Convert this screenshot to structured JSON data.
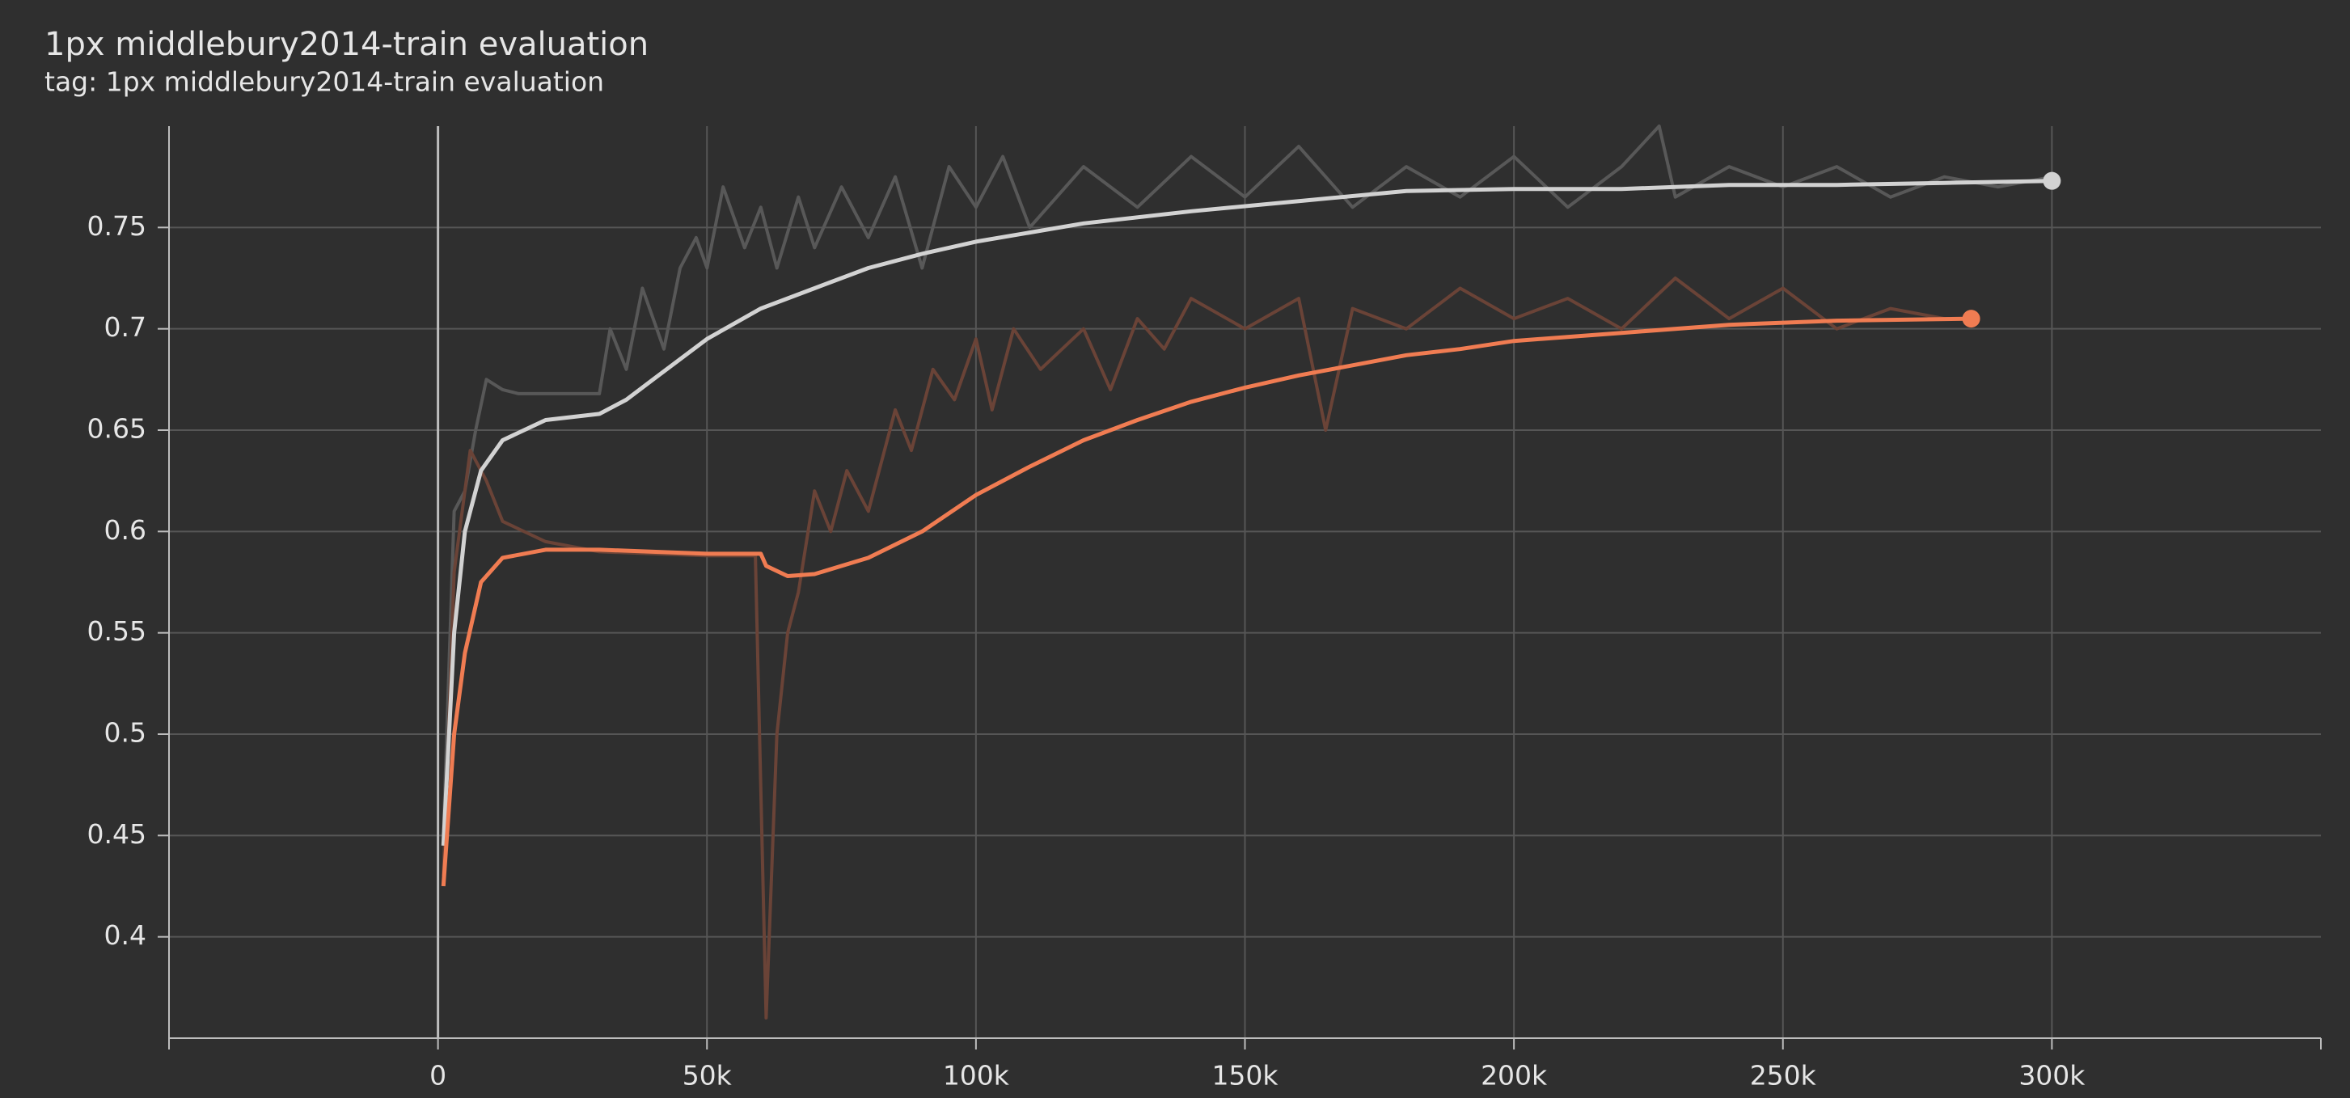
{
  "chart_data": {
    "type": "line",
    "title": "1px middlebury2014-train evaluation",
    "subtitle": "tag: 1px middlebury2014-train evaluation",
    "xlim": [
      -50000,
      350000
    ],
    "ylim": [
      0.35,
      0.8
    ],
    "xticks": [
      0,
      {
        "value": 50000,
        "label": "50k"
      },
      {
        "value": 100000,
        "label": "100k"
      },
      {
        "value": 150000,
        "label": "150k"
      },
      {
        "value": 200000,
        "label": "200k"
      },
      {
        "value": 250000,
        "label": "250k"
      },
      {
        "value": 300000,
        "label": "300k"
      }
    ],
    "yticks": [
      0.4,
      0.45,
      0.5,
      0.55,
      0.6,
      0.65,
      0.7,
      0.75
    ],
    "grid": true,
    "series": [
      {
        "color": "#585858",
        "x": [
          1000,
          3000,
          5000,
          7000,
          9000,
          12000,
          15000,
          20000,
          25000,
          30000,
          32000,
          35000,
          38000,
          42000,
          45000,
          48000,
          50000,
          53000,
          57000,
          60000,
          63000,
          67000,
          70000,
          75000,
          80000,
          85000,
          90000,
          95000,
          100000,
          105000,
          110000,
          120000,
          130000,
          140000,
          150000,
          160000,
          170000,
          180000,
          190000,
          200000,
          210000,
          220000,
          227000,
          230000,
          240000,
          250000,
          260000,
          270000,
          280000,
          290000,
          300000
        ],
        "values": [
          0.45,
          0.61,
          0.62,
          0.65,
          0.675,
          0.67,
          0.668,
          0.668,
          0.668,
          0.668,
          0.7,
          0.68,
          0.72,
          0.69,
          0.73,
          0.745,
          0.73,
          0.77,
          0.74,
          0.76,
          0.73,
          0.765,
          0.74,
          0.77,
          0.745,
          0.775,
          0.73,
          0.78,
          0.76,
          0.785,
          0.75,
          0.78,
          0.76,
          0.785,
          0.765,
          0.79,
          0.76,
          0.78,
          0.765,
          0.785,
          0.76,
          0.78,
          0.8,
          0.765,
          0.78,
          0.77,
          0.78,
          0.765,
          0.775,
          0.77,
          0.775
        ]
      },
      {
        "color": "#6a4337",
        "x": [
          1000,
          3000,
          6000,
          9000,
          12000,
          20000,
          30000,
          40000,
          50000,
          59000,
          61000,
          63000,
          65000,
          67000,
          70000,
          73000,
          76000,
          80000,
          85000,
          88000,
          92000,
          96000,
          100000,
          103000,
          107000,
          112000,
          120000,
          125000,
          130000,
          135000,
          140000,
          150000,
          160000,
          165000,
          170000,
          180000,
          190000,
          200000,
          210000,
          220000,
          230000,
          240000,
          250000,
          260000,
          270000,
          280000,
          285000
        ],
        "values": [
          0.43,
          0.58,
          0.64,
          0.625,
          0.605,
          0.595,
          0.59,
          0.589,
          0.588,
          0.588,
          0.36,
          0.5,
          0.55,
          0.57,
          0.62,
          0.6,
          0.63,
          0.61,
          0.66,
          0.64,
          0.68,
          0.665,
          0.695,
          0.66,
          0.7,
          0.68,
          0.7,
          0.67,
          0.705,
          0.69,
          0.715,
          0.7,
          0.715,
          0.65,
          0.71,
          0.7,
          0.72,
          0.705,
          0.715,
          0.7,
          0.725,
          0.705,
          0.72,
          0.7,
          0.71,
          0.705,
          0.705
        ]
      },
      {
        "color": "#d2d2d2",
        "x": [
          1000,
          3000,
          5000,
          8000,
          12000,
          20000,
          30000,
          35000,
          40000,
          50000,
          60000,
          70000,
          80000,
          90000,
          100000,
          120000,
          140000,
          160000,
          180000,
          200000,
          220000,
          240000,
          260000,
          280000,
          300000
        ],
        "values": [
          0.445,
          0.55,
          0.6,
          0.63,
          0.645,
          0.655,
          0.658,
          0.665,
          0.675,
          0.695,
          0.71,
          0.72,
          0.73,
          0.737,
          0.743,
          0.752,
          0.758,
          0.763,
          0.768,
          0.769,
          0.769,
          0.771,
          0.771,
          0.772,
          0.773
        ]
      },
      {
        "color": "#f07c52",
        "x": [
          1000,
          3000,
          5000,
          8000,
          12000,
          20000,
          30000,
          40000,
          50000,
          60000,
          61000,
          65000,
          70000,
          80000,
          90000,
          100000,
          110000,
          120000,
          130000,
          140000,
          150000,
          160000,
          170000,
          180000,
          190000,
          200000,
          220000,
          240000,
          260000,
          285000
        ],
        "values": [
          0.425,
          0.5,
          0.54,
          0.575,
          0.587,
          0.591,
          0.591,
          0.59,
          0.589,
          0.589,
          0.583,
          0.578,
          0.579,
          0.587,
          0.6,
          0.618,
          0.632,
          0.645,
          0.655,
          0.664,
          0.671,
          0.677,
          0.682,
          0.687,
          0.69,
          0.694,
          0.698,
          0.702,
          0.704,
          0.705
        ]
      }
    ]
  }
}
